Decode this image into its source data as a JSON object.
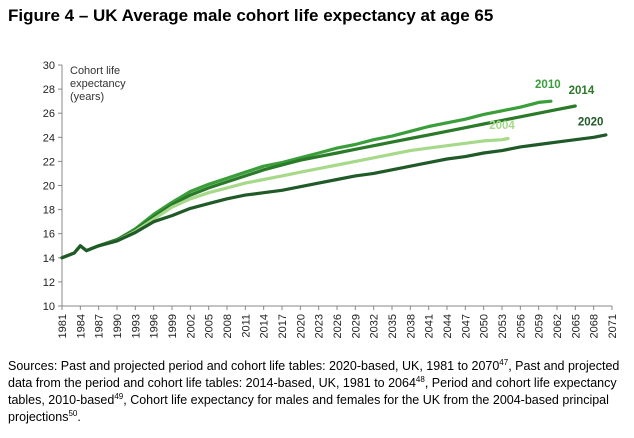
{
  "title": "Figure 4 – UK Average male cohort life expectancy at age 65",
  "sources": {
    "p1": "Sources: Past and projected period and cohort life tables: 2020-based, UK, 1981 to 2070",
    "n1": "47",
    "p2": ", Past and projected data from the period and cohort life tables: 2014-based, UK, 1981 to 2064",
    "n2": "48",
    "p3": ", Period and cohort life expectancy tables, 2010-based",
    "n3": "49",
    "p4": ", Cohort life expectancy for males and females for the UK from the 2004-based principal projections",
    "n4": "50",
    "p5": "."
  },
  "colors": {
    "s2010": "#3a9e3a",
    "s2014": "#2a7a2a",
    "s2004": "#a6d98a",
    "s2020": "#1f5a28",
    "axis": "#888888",
    "grid": "#d9d9d9"
  },
  "chart_data": {
    "type": "line",
    "title": "Figure 4 – UK Average male cohort life expectancy at age 65",
    "ylabel": [
      "Cohort life",
      "expectancy",
      "(years)"
    ],
    "xlabel": "",
    "ylim": [
      10,
      30
    ],
    "xlim": [
      1981,
      2071
    ],
    "yticks": [
      10,
      12,
      14,
      16,
      18,
      20,
      22,
      24,
      26,
      28,
      30
    ],
    "xticks": [
      1981,
      1984,
      1987,
      1990,
      1993,
      1996,
      1999,
      2002,
      2005,
      2008,
      2011,
      2014,
      2017,
      2020,
      2023,
      2026,
      2029,
      2032,
      2035,
      2038,
      2041,
      2044,
      2047,
      2050,
      2053,
      2056,
      2059,
      2062,
      2065,
      2068,
      2071
    ],
    "grid": false,
    "series": [
      {
        "name": "2010",
        "color_key": "s2010",
        "x": [
          1981,
          1983,
          1984,
          1985,
          1987,
          1990,
          1993,
          1996,
          1999,
          2002,
          2005,
          2008,
          2011,
          2014,
          2017,
          2020,
          2023,
          2026,
          2029,
          2032,
          2035,
          2038,
          2041,
          2044,
          2047,
          2050,
          2053,
          2056,
          2059,
          2061
        ],
        "values": [
          14.0,
          14.4,
          15.0,
          14.6,
          15.0,
          15.5,
          16.4,
          17.6,
          18.6,
          19.5,
          20.1,
          20.6,
          21.1,
          21.6,
          21.9,
          22.3,
          22.7,
          23.1,
          23.4,
          23.8,
          24.1,
          24.5,
          24.9,
          25.2,
          25.5,
          25.9,
          26.2,
          26.5,
          26.9,
          27.0
        ]
      },
      {
        "name": "2014",
        "color_key": "s2014",
        "x": [
          1981,
          1983,
          1984,
          1985,
          1987,
          1990,
          1993,
          1996,
          1999,
          2002,
          2005,
          2008,
          2011,
          2014,
          2017,
          2020,
          2023,
          2026,
          2029,
          2032,
          2035,
          2038,
          2041,
          2044,
          2047,
          2050,
          2053,
          2056,
          2059,
          2062,
          2065
        ],
        "values": [
          14.0,
          14.4,
          15.0,
          14.6,
          15.0,
          15.5,
          16.3,
          17.4,
          18.4,
          19.2,
          19.8,
          20.3,
          20.8,
          21.3,
          21.7,
          22.1,
          22.4,
          22.7,
          23.0,
          23.3,
          23.6,
          23.9,
          24.2,
          24.5,
          24.8,
          25.1,
          25.4,
          25.7,
          26.0,
          26.3,
          26.6
        ]
      },
      {
        "name": "2004",
        "color_key": "s2004",
        "x": [
          1981,
          1983,
          1984,
          1985,
          1987,
          1990,
          1993,
          1996,
          1999,
          2002,
          2005,
          2008,
          2011,
          2014,
          2017,
          2020,
          2023,
          2026,
          2029,
          2032,
          2035,
          2038,
          2041,
          2044,
          2047,
          2050,
          2053,
          2054
        ],
        "values": [
          14.0,
          14.4,
          15.0,
          14.6,
          15.0,
          15.4,
          16.2,
          17.2,
          18.2,
          18.9,
          19.4,
          19.8,
          20.2,
          20.5,
          20.8,
          21.1,
          21.4,
          21.7,
          22.0,
          22.3,
          22.6,
          22.9,
          23.1,
          23.3,
          23.5,
          23.7,
          23.8,
          23.9
        ]
      },
      {
        "name": "2020",
        "color_key": "s2020",
        "x": [
          1981,
          1983,
          1984,
          1985,
          1987,
          1990,
          1993,
          1996,
          1999,
          2002,
          2005,
          2008,
          2011,
          2014,
          2017,
          2020,
          2023,
          2026,
          2029,
          2032,
          2035,
          2038,
          2041,
          2044,
          2047,
          2050,
          2053,
          2056,
          2059,
          2062,
          2065,
          2068,
          2070
        ],
        "values": [
          14.0,
          14.4,
          15.0,
          14.6,
          15.0,
          15.4,
          16.1,
          17.0,
          17.5,
          18.1,
          18.5,
          18.9,
          19.2,
          19.4,
          19.6,
          19.9,
          20.2,
          20.5,
          20.8,
          21.0,
          21.3,
          21.6,
          21.9,
          22.2,
          22.4,
          22.7,
          22.9,
          23.2,
          23.4,
          23.6,
          23.8,
          24.0,
          24.2
        ]
      }
    ],
    "annotations": [
      {
        "text": "2010",
        "x": 2060.5,
        "y": 28.1,
        "series": "2010"
      },
      {
        "text": "2014",
        "x": 2066.0,
        "y": 27.6,
        "series": "2014"
      },
      {
        "text": "2004",
        "x": 2053.0,
        "y": 24.7,
        "series": "2004"
      },
      {
        "text": "2020",
        "x": 2067.5,
        "y": 25.0,
        "series": "2020"
      }
    ]
  }
}
